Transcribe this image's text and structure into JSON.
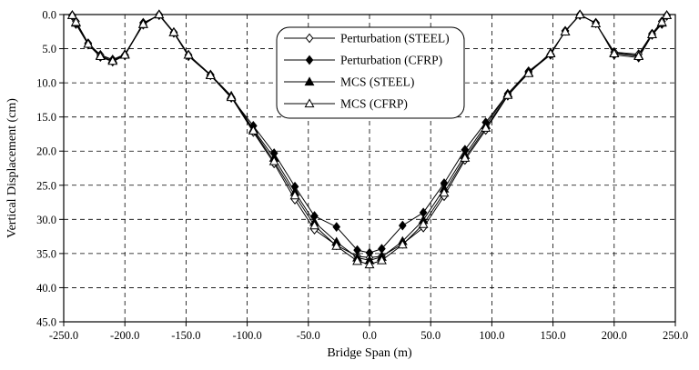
{
  "chart_data": {
    "type": "line",
    "xlabel": "Bridge Span (m)",
    "ylabel": "Vertical Displacement (cm)",
    "xlim": [
      -250,
      250
    ],
    "ylim": [
      0,
      45
    ],
    "y_axis_inverted": true,
    "x_ticks": [
      -250,
      -200,
      -150,
      -100,
      -50,
      0,
      50,
      100,
      150,
      200,
      250
    ],
    "x_tick_labels": [
      "-250.0",
      "-200.0",
      "-150.0",
      "-100.0",
      "-50.0",
      "0.0",
      "50.0",
      "100.0",
      "150.0",
      "200.0",
      "250.0"
    ],
    "y_ticks": [
      0,
      5,
      10,
      15,
      20,
      25,
      30,
      35,
      40,
      45
    ],
    "y_tick_labels": [
      "0.0",
      "5.0",
      "10.0",
      "15.0",
      "20.0",
      "25.0",
      "30.0",
      "35.0",
      "40.0",
      "45.0"
    ],
    "grid": true,
    "grid_style": "dashed",
    "legend_position": "top-center",
    "series": [
      {
        "name": "Perturbation (STEEL)",
        "marker": "diamond-open",
        "color": "#000000",
        "x": [
          -243,
          -240,
          -230,
          -220,
          -210,
          -200,
          -185,
          -172,
          -160,
          -148,
          -130,
          -113,
          -95,
          -78,
          -61,
          -45,
          -27,
          -10,
          0,
          10,
          27,
          44,
          61,
          78,
          95,
          113,
          130,
          148,
          160,
          172,
          185,
          200,
          220,
          231,
          239,
          243
        ],
        "y": [
          0.2,
          1.0,
          4.2,
          5.9,
          6.6,
          5.9,
          1.5,
          0.0,
          2.6,
          5.9,
          8.8,
          12.1,
          17.2,
          21.8,
          27.1,
          31.5,
          33.8,
          35.4,
          35.6,
          35.4,
          33.6,
          31.2,
          26.6,
          21.3,
          16.9,
          11.9,
          8.5,
          5.9,
          2.4,
          0.0,
          1.3,
          5.5,
          5.8,
          2.8,
          1.0,
          0.2
        ]
      },
      {
        "name": "Perturbation (CFRP)",
        "marker": "diamond-filled",
        "color": "#000000",
        "x": [
          -243,
          -240,
          -230,
          -220,
          -210,
          -200,
          -185,
          -172,
          -160,
          -148,
          -130,
          -113,
          -95,
          -78,
          -61,
          -45,
          -27,
          -10,
          0,
          10,
          27,
          44,
          61,
          78,
          95,
          113,
          130,
          148,
          160,
          172,
          185,
          200,
          220,
          231,
          239,
          243
        ],
        "y": [
          0.1,
          1.4,
          4.4,
          6.2,
          6.9,
          6.0,
          1.2,
          0.1,
          2.7,
          6.1,
          8.9,
          12.2,
          16.3,
          20.3,
          25.2,
          29.5,
          31.1,
          34.5,
          34.9,
          34.3,
          30.9,
          29.0,
          24.7,
          19.8,
          15.8,
          11.6,
          8.3,
          5.8,
          2.4,
          0.1,
          1.2,
          5.9,
          6.3,
          3.0,
          1.4,
          0.1
        ]
      },
      {
        "name": "MCS (STEEL)",
        "marker": "triangle-filled",
        "color": "#000000",
        "x": [
          -243,
          -240,
          -230,
          -220,
          -210,
          -200,
          -185,
          -172,
          -160,
          -148,
          -130,
          -113,
          -95,
          -78,
          -61,
          -45,
          -27,
          -10,
          0,
          10,
          27,
          44,
          61,
          78,
          95,
          113,
          130,
          148,
          160,
          172,
          185,
          200,
          220,
          231,
          239,
          243
        ],
        "y": [
          0.1,
          1.2,
          4.3,
          6.0,
          6.6,
          5.8,
          1.4,
          0.0,
          2.6,
          5.9,
          8.8,
          11.9,
          16.8,
          21.0,
          26.0,
          30.4,
          33.3,
          35.6,
          36.0,
          35.5,
          33.2,
          30.1,
          25.5,
          20.6,
          16.2,
          11.6,
          8.5,
          5.6,
          2.5,
          0.0,
          1.3,
          5.6,
          6.0,
          2.9,
          1.2,
          0.1
        ]
      },
      {
        "name": "MCS (CFRP)",
        "marker": "triangle-open",
        "color": "#000000",
        "x": [
          -243,
          -240,
          -230,
          -220,
          -210,
          -200,
          -185,
          -172,
          -160,
          -148,
          -130,
          -113,
          -95,
          -78,
          -61,
          -45,
          -27,
          -10,
          0,
          10,
          27,
          44,
          61,
          78,
          95,
          113,
          130,
          148,
          160,
          172,
          185,
          200,
          220,
          231,
          239,
          243
        ],
        "y": [
          0.1,
          1.1,
          4.3,
          6.1,
          6.8,
          5.9,
          1.4,
          0.0,
          2.6,
          5.9,
          8.9,
          12.1,
          17.0,
          21.5,
          26.5,
          30.9,
          33.9,
          36.1,
          36.6,
          36.0,
          33.7,
          30.7,
          26.1,
          21.0,
          16.6,
          11.8,
          8.6,
          5.7,
          2.5,
          0.0,
          1.3,
          5.7,
          6.1,
          2.9,
          1.1,
          0.1
        ]
      }
    ]
  }
}
